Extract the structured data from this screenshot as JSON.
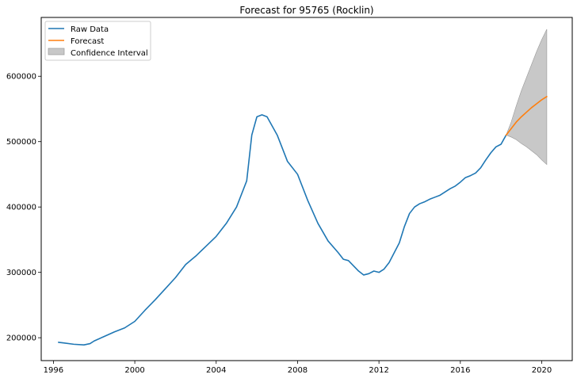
{
  "chart_data": {
    "type": "line",
    "title": "Forecast for 95765 (Rocklin)",
    "xlabel": "",
    "ylabel": "",
    "xlim": [
      1995.4,
      2021.5
    ],
    "ylim": [
      165000,
      690000
    ],
    "x_ticks": [
      1996,
      2000,
      2004,
      2008,
      2012,
      2016,
      2020
    ],
    "x_tick_labels": [
      "1996",
      "2000",
      "2004",
      "2008",
      "2012",
      "2016",
      "2020"
    ],
    "y_ticks": [
      200000,
      300000,
      400000,
      500000,
      600000
    ],
    "y_tick_labels": [
      "200000",
      "300000",
      "400000",
      "500000",
      "600000"
    ],
    "grid": false,
    "legend_position": "top-left",
    "legend": [
      "Raw Data",
      "Forecast",
      "Confidence Interval"
    ],
    "colors": {
      "raw": "#1f77b4",
      "forecast": "#ff7f0e",
      "confidence_fill": "#c8c8c8",
      "confidence_edge": "#999999"
    },
    "series": [
      {
        "name": "Raw Data",
        "x": [
          1996.25,
          1996.5,
          1997.0,
          1997.5,
          1997.8,
          1998.0,
          1998.5,
          1999.0,
          1999.5,
          2000.0,
          2000.5,
          2001.0,
          2001.5,
          2002.0,
          2002.5,
          2003.0,
          2003.5,
          2004.0,
          2004.5,
          2005.0,
          2005.5,
          2005.75,
          2006.0,
          2006.25,
          2006.5,
          2007.0,
          2007.5,
          2008.0,
          2008.5,
          2009.0,
          2009.5,
          2010.0,
          2010.25,
          2010.5,
          2010.75,
          2011.0,
          2011.25,
          2011.5,
          2011.75,
          2012.0,
          2012.25,
          2012.5,
          2013.0,
          2013.25,
          2013.5,
          2013.75,
          2014.0,
          2014.25,
          2014.5,
          2014.75,
          2015.0,
          2015.25,
          2015.5,
          2015.75,
          2016.0,
          2016.25,
          2016.5,
          2016.75,
          2017.0,
          2017.25,
          2017.5,
          2017.75,
          2018.0,
          2018.25
        ],
        "values": [
          193000,
          192000,
          190000,
          189000,
          191000,
          195000,
          202000,
          209000,
          215000,
          225000,
          242000,
          258000,
          275000,
          292000,
          312000,
          325000,
          340000,
          355000,
          375000,
          400000,
          440000,
          510000,
          538000,
          541000,
          538000,
          510000,
          470000,
          450000,
          410000,
          375000,
          348000,
          330000,
          320000,
          318000,
          310000,
          302000,
          296000,
          298000,
          302000,
          300000,
          305000,
          315000,
          345000,
          370000,
          390000,
          400000,
          405000,
          408000,
          412000,
          415000,
          418000,
          423000,
          428000,
          432000,
          438000,
          445000,
          448000,
          452000,
          460000,
          472000,
          483000,
          492000,
          496000,
          510000
        ]
      },
      {
        "name": "Forecast",
        "x": [
          2018.25,
          2018.5,
          2018.75,
          2019.0,
          2019.25,
          2019.5,
          2019.75,
          2020.0,
          2020.25
        ],
        "values": [
          510000,
          520000,
          530000,
          538000,
          545000,
          552000,
          558000,
          564000,
          569000
        ]
      },
      {
        "name": "Confidence Interval",
        "x": [
          2018.25,
          2018.5,
          2018.75,
          2019.0,
          2019.25,
          2019.5,
          2019.75,
          2020.0,
          2020.25
        ],
        "lower": [
          510000,
          507000,
          503000,
          497000,
          492000,
          486000,
          480000,
          472000,
          465000
        ],
        "upper": [
          510000,
          530000,
          555000,
          578000,
          598000,
          618000,
          638000,
          656000,
          672000
        ]
      }
    ]
  }
}
